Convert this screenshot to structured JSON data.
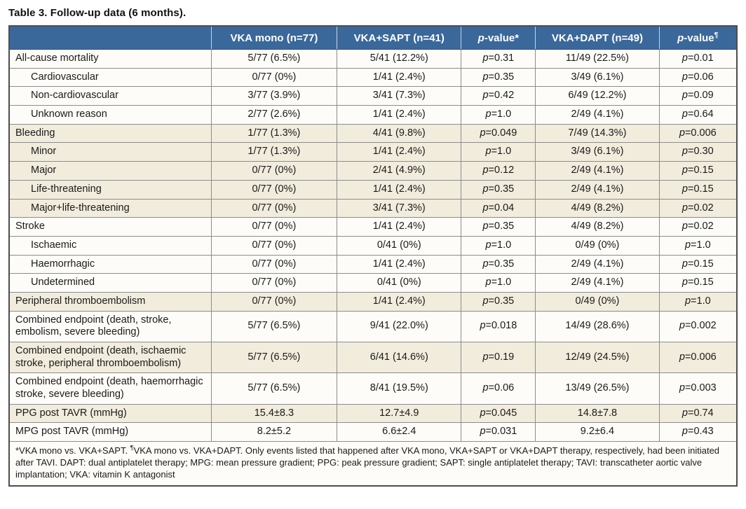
{
  "title": "Table 3. Follow-up data (6 months).",
  "colors": {
    "header_bg": "#3a689b",
    "header_text": "#ffffff",
    "row_shaded_bg": "#f1ecdc",
    "row_plain_bg": "#fdfcf8",
    "border_outer": "#4d4d4d",
    "border_inner": "#8c8c8c"
  },
  "table": {
    "columns": [
      "",
      "VKA mono (n=77)",
      "VKA+SAPT (n=41)",
      "p-value*",
      "VKA+DAPT (n=49)",
      "p-value¶"
    ],
    "rows": [
      {
        "label": "All-cause mortality",
        "indent": false,
        "shaded": false,
        "cells": [
          "5/77 (6.5%)",
          "5/41 (12.2%)",
          "p=0.31",
          "11/49 (22.5%)",
          "p=0.01"
        ]
      },
      {
        "label": "Cardiovascular",
        "indent": true,
        "shaded": false,
        "cells": [
          "0/77 (0%)",
          "1/41 (2.4%)",
          "p=0.35",
          "3/49 (6.1%)",
          "p=0.06"
        ]
      },
      {
        "label": "Non-cardiovascular",
        "indent": true,
        "shaded": false,
        "cells": [
          "3/77 (3.9%)",
          "3/41 (7.3%)",
          "p=0.42",
          "6/49 (12.2%)",
          "p=0.09"
        ]
      },
      {
        "label": "Unknown reason",
        "indent": true,
        "shaded": false,
        "cells": [
          "2/77 (2.6%)",
          "1/41 (2.4%)",
          "p=1.0",
          "2/49 (4.1%)",
          "p=0.64"
        ]
      },
      {
        "label": "Bleeding",
        "indent": false,
        "shaded": true,
        "cells": [
          "1/77 (1.3%)",
          "4/41 (9.8%)",
          "p=0.049",
          "7/49 (14.3%)",
          "p=0.006"
        ]
      },
      {
        "label": "Minor",
        "indent": true,
        "shaded": true,
        "cells": [
          "1/77 (1.3%)",
          "1/41 (2.4%)",
          "p=1.0",
          "3/49 (6.1%)",
          "p=0.30"
        ]
      },
      {
        "label": "Major",
        "indent": true,
        "shaded": true,
        "cells": [
          "0/77 (0%)",
          "2/41 (4.9%)",
          "p=0.12",
          "2/49 (4.1%)",
          "p=0.15"
        ]
      },
      {
        "label": "Life-threatening",
        "indent": true,
        "shaded": true,
        "cells": [
          "0/77 (0%)",
          "1/41 (2.4%)",
          "p=0.35",
          "2/49 (4.1%)",
          "p=0.15"
        ]
      },
      {
        "label": "Major+life-threatening",
        "indent": true,
        "shaded": true,
        "cells": [
          "0/77 (0%)",
          "3/41 (7.3%)",
          "p=0.04",
          "4/49 (8.2%)",
          "p=0.02"
        ]
      },
      {
        "label": "Stroke",
        "indent": false,
        "shaded": false,
        "cells": [
          "0/77 (0%)",
          "1/41 (2.4%)",
          "p=0.35",
          "4/49 (8.2%)",
          "p=0.02"
        ]
      },
      {
        "label": "Ischaemic",
        "indent": true,
        "shaded": false,
        "cells": [
          "0/77 (0%)",
          "0/41 (0%)",
          "p=1.0",
          "0/49 (0%)",
          "p=1.0"
        ]
      },
      {
        "label": "Haemorrhagic",
        "indent": true,
        "shaded": false,
        "cells": [
          "0/77 (0%)",
          "1/41 (2.4%)",
          "p=0.35",
          "2/49 (4.1%)",
          "p=0.15"
        ]
      },
      {
        "label": "Undetermined",
        "indent": true,
        "shaded": false,
        "cells": [
          "0/77 (0%)",
          "0/41 (0%)",
          "p=1.0",
          "2/49 (4.1%)",
          "p=0.15"
        ]
      },
      {
        "label": "Peripheral thromboembolism",
        "indent": false,
        "shaded": true,
        "cells": [
          "0/77 (0%)",
          "1/41 (2.4%)",
          "p=0.35",
          "0/49 (0%)",
          "p=1.0"
        ]
      },
      {
        "label": "Combined endpoint (death, stroke, embolism, severe bleeding)",
        "indent": false,
        "shaded": false,
        "cells": [
          "5/77 (6.5%)",
          "9/41 (22.0%)",
          "p=0.018",
          "14/49 (28.6%)",
          "p=0.002"
        ]
      },
      {
        "label": "Combined endpoint (death, ischaemic stroke, peripheral thromboembolism)",
        "indent": false,
        "shaded": true,
        "cells": [
          "5/77 (6.5%)",
          "6/41 (14.6%)",
          "p=0.19",
          "12/49 (24.5%)",
          "p=0.006"
        ]
      },
      {
        "label": "Combined endpoint (death, haemorrhagic stroke, severe bleeding)",
        "indent": false,
        "shaded": false,
        "cells": [
          "5/77 (6.5%)",
          "8/41 (19.5%)",
          "p=0.06",
          "13/49 (26.5%)",
          "p=0.003"
        ]
      },
      {
        "label": "PPG post TAVR (mmHg)",
        "indent": false,
        "shaded": true,
        "cells": [
          "15.4±8.3",
          "12.7±4.9",
          "p=0.045",
          "14.8±7.8",
          "p=0.74"
        ]
      },
      {
        "label": "MPG post TAVR (mmHg)",
        "indent": false,
        "shaded": false,
        "cells": [
          "8.2±5.2",
          "6.6±2.4",
          "p=0.031",
          "9.2±6.4",
          "p=0.43"
        ]
      }
    ],
    "footnote": "*VKA mono vs. VKA+SAPT. ¶VKA mono vs. VKA+DAPT. Only events listed that happened after VKA mono, VKA+SAPT or VKA+DAPT therapy, respectively, had been initiated after TAVI. DAPT: dual antiplatelet therapy; MPG: mean pressure gradient; PPG: peak pressure gradient; SAPT: single antiplatelet therapy; TAVI: transcatheter aortic valve implantation; VKA: vitamin K antagonist"
  }
}
